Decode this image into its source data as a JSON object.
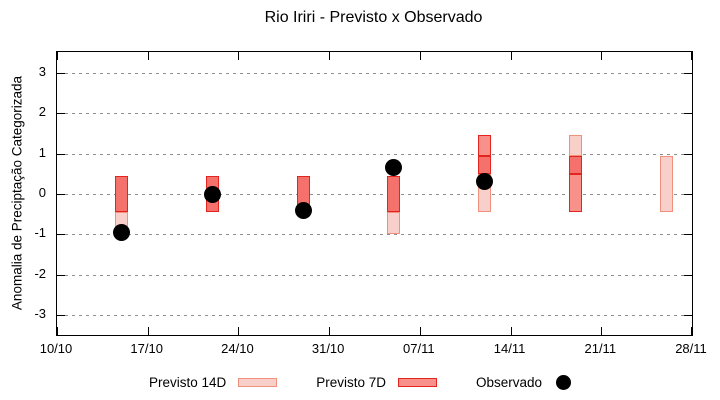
{
  "title": "Rio Iriri - Previsto x Observado",
  "ylabel": "Anomalia de Preciptação Categorizada",
  "legend": {
    "items": [
      {
        "label": "Previsto 14D",
        "swatch": "box-light-pink"
      },
      {
        "label": "Previsto 7D",
        "swatch": "box-red"
      },
      {
        "label": "Observado",
        "swatch": "black-dot"
      }
    ]
  },
  "colors": {
    "previsto_14d_fill": "#f9cfc9",
    "previsto_14d_border": "#ef917f",
    "previsto_7d_fill": "#f8918a",
    "previsto_7d_border": "#e3251f",
    "overlap_fill": "#f5716b",
    "observado": "#000000",
    "grid": "#8f8f8f",
    "axis": "#000000"
  },
  "chart_data": {
    "type": "bar",
    "subtype": "interval-range-bars-with-scatter",
    "title": "Rio Iriri - Previsto x Observado",
    "xlabel": "",
    "ylabel": "Anomalia de Preciptação Categorizada",
    "ylim": [
      -3.5,
      3.5
    ],
    "yticks": [
      3,
      2,
      1,
      0,
      -1,
      -2,
      -3
    ],
    "xtick_labels": [
      "10/10",
      "17/10",
      "24/10",
      "31/10",
      "07/11",
      "14/11",
      "21/11",
      "28/11"
    ],
    "xtick_days": [
      0,
      7,
      14,
      21,
      28,
      35,
      42,
      49
    ],
    "x_span_days": 49,
    "grid": "horizontal-dashed",
    "legend_position": "below-plot",
    "legend": [
      "Previsto 14D",
      "Previsto 7D",
      "Observado"
    ],
    "groups": [
      {
        "date": "15/10",
        "day": 5,
        "previsto_14d": {
          "hi": 0.45,
          "lo": -0.95
        },
        "previsto_7d": {
          "hi": 0.45,
          "lo": -0.45
        },
        "observado": -0.95
      },
      {
        "date": "22/10",
        "day": 12,
        "previsto_14d": {
          "hi": 0.45,
          "lo": -0.45
        },
        "previsto_7d": {
          "hi": 0.45,
          "lo": -0.45
        },
        "observado": 0.0
      },
      {
        "date": "29/10",
        "day": 19,
        "previsto_14d": {
          "hi": 0.45,
          "lo": -0.45
        },
        "previsto_7d": {
          "hi": 0.45,
          "lo": -0.45
        },
        "observado": -0.4
      },
      {
        "date": "05/11",
        "day": 26,
        "previsto_14d": {
          "hi": 0.45,
          "lo": -1.0
        },
        "previsto_7d": {
          "hi": 0.45,
          "lo": -0.45
        },
        "observado": 0.65
      },
      {
        "date": "12/11",
        "day": 33,
        "previsto_14d": {
          "hi": 0.95,
          "lo": -0.45
        },
        "previsto_7d": {
          "hi": 1.45,
          "lo": 0.5
        },
        "observado": 0.3
      },
      {
        "date": "19/11",
        "day": 40,
        "previsto_14d": {
          "hi": 1.45,
          "lo": 0.5
        },
        "previsto_7d": {
          "hi": 0.95,
          "lo": -0.45
        },
        "observado": null
      },
      {
        "date": "26/11",
        "day": 47,
        "previsto_14d": {
          "hi": 0.95,
          "lo": -0.45
        },
        "previsto_7d": null,
        "observado": null
      }
    ]
  }
}
